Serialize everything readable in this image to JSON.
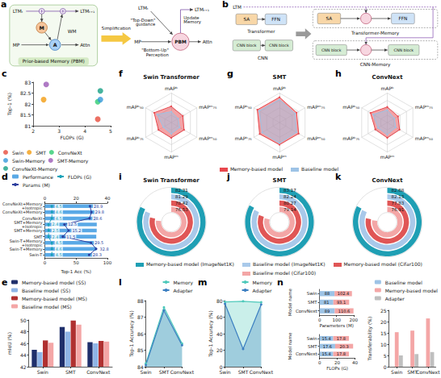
{
  "diagrams": [
    {
      "panel": "a",
      "pbm_detail": {
        "title": "Prior-based Memory (PBM)",
        "ltm_in": "LTMₜ",
        "ltm_out": "LTMₜ₊₁",
        "input": "MP",
        "output": "Attn",
        "memory_node": "M",
        "attention_node": "A",
        "working_memory": "WM"
      },
      "transition": "Simplification",
      "pbm_simple": {
        "block": "PBM",
        "ltm_in": "LTMₜ",
        "ltm_out": "LTMₜ₊₁",
        "input": "MP",
        "output": "Attn",
        "top_down": "\"Top-Down\" guidance",
        "bottom_up": "\"Bottom-Up\" Perception",
        "update": "Update Memory"
      }
    },
    {
      "panel": "b",
      "memory_line": "LTM",
      "baselines": [
        {
          "name": "Transformer",
          "blocks": [
            "SA",
            "FFN"
          ]
        },
        {
          "name": "CNN",
          "blocks": [
            "CNN block",
            "CNN block"
          ]
        }
      ],
      "memory_models": [
        {
          "name": "Transformer-Memory",
          "blocks": [
            "SA",
            "FFN"
          ]
        },
        {
          "name": "CNN-Memory",
          "blocks": [
            "CNN block",
            "CNN block"
          ]
        }
      ]
    }
  ],
  "chart_data": [
    {
      "panel": "c",
      "type": "scatter",
      "xlabel": "FLOPs (G)",
      "ylabel": "Top-1 (%)",
      "xlim": [
        2,
        5
      ],
      "xticks": [
        2,
        3,
        4,
        5
      ],
      "ylim": [
        81,
        83
      ],
      "yticks": [
        81,
        81.5,
        82,
        82.5,
        83
      ],
      "legend": "bottom",
      "series": [
        {
          "name": "Swin",
          "color": "#e74c3c",
          "x": [
            4.5
          ],
          "values": [
            81.3
          ]
        },
        {
          "name": "SMT",
          "color": "#f39c12",
          "x": [
            2.4
          ],
          "values": [
            82.2
          ]
        },
        {
          "name": "ConvNeXt",
          "color": "#2ecc71",
          "x": [
            4.5
          ],
          "values": [
            82.1
          ]
        },
        {
          "name": "Swin-Memory",
          "color": "#3498db",
          "x": [
            4.6
          ],
          "values": [
            82.2
          ]
        },
        {
          "name": "SMT-Memory",
          "color": "#9b59b6",
          "x": [
            2.5
          ],
          "values": [
            82.9
          ]
        },
        {
          "name": "ConvNeXt-Memory",
          "color": "#16a085",
          "x": [
            4.6
          ],
          "values": [
            82.6
          ]
        }
      ]
    },
    {
      "panel": "f",
      "type": "radar",
      "title": "Swin Transformer",
      "tick_labels": false,
      "legend": "bottom",
      "indicators": [
        {
          "name": "mAPᵇ",
          "min": 40,
          "max": 50
        },
        {
          "name": "mAPᵇ₅₀",
          "min": 60,
          "max": 72
        },
        {
          "name": "mAPᵇ₇₅",
          "min": 44,
          "max": 56
        },
        {
          "name": "mAPᵐ",
          "min": 36,
          "max": 46
        },
        {
          "name": "mAPᵐ₅₀",
          "min": 60,
          "max": 70
        },
        {
          "name": "mAPᵐ₇₅",
          "min": 40,
          "max": 50
        }
      ],
      "series": [
        {
          "name": "Memory-based model",
          "color": "#e8474d",
          "values": [
            45.5,
            68.0,
            50.0,
            41.2,
            65.0,
            44.5
          ]
        },
        {
          "name": "Baseline model",
          "color": "#9dc3e6",
          "values": [
            43.7,
            66.6,
            47.7,
            39.8,
            63.3,
            42.7
          ]
        }
      ]
    },
    {
      "panel": "g",
      "type": "radar",
      "title": "SMT",
      "tick_labels": false,
      "indicators": [
        {
          "name": "mAPᵇ",
          "min": 40,
          "max": 50
        },
        {
          "name": "mAPᵇ₅₀",
          "min": 60,
          "max": 72
        },
        {
          "name": "mAPᵇ₇₅",
          "min": 44,
          "max": 56
        },
        {
          "name": "mAPᵐ",
          "min": 36,
          "max": 46
        },
        {
          "name": "mAPᵐ₅₀",
          "min": 60,
          "max": 70
        },
        {
          "name": "mAPᵐ₇₅",
          "min": 40,
          "max": 50
        }
      ],
      "series": [
        {
          "name": "Memory-based model",
          "color": "#e8474d",
          "values": [
            48.6,
            70.4,
            53.3,
            43.5,
            67.5,
            46.7
          ]
        },
        {
          "name": "Baseline model",
          "color": "#9dc3e6",
          "values": [
            47.8,
            69.5,
            52.1,
            43.0,
            66.6,
            46.1
          ]
        }
      ]
    },
    {
      "panel": "h",
      "type": "radar",
      "title": "ConvNext",
      "tick_labels": false,
      "indicators": [
        {
          "name": "mAPᵇ",
          "min": 40,
          "max": 50
        },
        {
          "name": "mAPᵇ₅₀",
          "min": 60,
          "max": 72
        },
        {
          "name": "mAPᵇ₇₅",
          "min": 44,
          "max": 56
        },
        {
          "name": "mAPᵐ",
          "min": 36,
          "max": 46
        },
        {
          "name": "mAPᵐ₅₀",
          "min": 60,
          "max": 70
        },
        {
          "name": "mAPᵐ₇₅",
          "min": 40,
          "max": 50
        }
      ],
      "series": [
        {
          "name": "Memory-based model",
          "color": "#e8474d",
          "values": [
            45.3,
            67.9,
            49.6,
            41.2,
            64.8,
            44.2
          ]
        },
        {
          "name": "Baseline model",
          "color": "#9dc3e6",
          "values": [
            44.2,
            66.6,
            48.3,
            40.1,
            63.3,
            42.8
          ]
        }
      ]
    },
    {
      "panel": "d",
      "type": "bar",
      "orientation": "horizontal",
      "legend": "top",
      "categories": [
        "Swin-T",
        "Swin-T+Memory",
        "Swin-T+Memory+Isotropic",
        "SMT",
        "SMT+Memory",
        "SMT+Memory+Isotropic",
        "ConvNeXt",
        "ConvNeXt+Memory",
        "ConvNeXt+Memory+Isotropic"
      ],
      "xlabel": "Top-1 Acc (%)",
      "xlim": [
        0,
        100
      ],
      "xticks": [
        0,
        50,
        100
      ],
      "x2lim": [
        0,
        40
      ],
      "x2ticks": [
        0,
        20,
        40
      ],
      "series": [
        {
          "name": "Performance",
          "type": "bar",
          "color": "#5aa9e6",
          "values": [
            81.3,
            82.2,
            82.4,
            82.2,
            82.9,
            83.0,
            82.1,
            82.6,
            82.8
          ]
        },
        {
          "name": "FLOPs (G)",
          "type": "line",
          "axis": "x2",
          "marker": "circle",
          "line_style": "dashed",
          "color": "#17a2b8",
          "data_labels": true,
          "values": [
            4.5,
            4.6,
            4.5,
            2.4,
            2.5,
            2.4,
            4.5,
            4.6,
            4.5
          ]
        },
        {
          "name": "Params (M)",
          "type": "line",
          "axis": "x2",
          "marker": "circle",
          "color": "#2c3e9e",
          "data_labels": true,
          "values": [
            28.3,
            32.8,
            29.5,
            11.5,
            15.2,
            12.5,
            28.6,
            29.8,
            28.9
          ]
        }
      ]
    },
    {
      "panel": "i",
      "type": "radial_bar",
      "title": "Swin Transformer",
      "legend": "bottom",
      "data_labels": true,
      "tick_labels": false,
      "ylim": [
        0,
        100
      ],
      "categories": [
        "Memory-based model (ImageNet1K)",
        "Baseline model (ImageNet1K)",
        "Memory-based model (Cifar100)",
        "Baseline model (Cifar100)"
      ],
      "values": [
        82.31,
        81.29,
        78.42,
        76.53
      ],
      "colors": [
        "#1f9fb4",
        "#a9c9ea",
        "#e05656",
        "#f3a6a6"
      ]
    },
    {
      "panel": "j",
      "type": "radial_bar",
      "title": "SMT",
      "data_labels": true,
      "tick_labels": false,
      "ylim": [
        0,
        100
      ],
      "categories": [
        "Memory-based model (ImageNet1K)",
        "Baseline model (ImageNet1K)",
        "Memory-based model (Cifar100)",
        "Baseline model (Cifar100)"
      ],
      "values": [
        83.17,
        82.24,
        80.27,
        79.14
      ],
      "colors": [
        "#1f9fb4",
        "#a9c9ea",
        "#e05656",
        "#f3a6a6"
      ]
    },
    {
      "panel": "k",
      "type": "radial_bar",
      "title": "ConvNext",
      "data_labels": true,
      "tick_labels": false,
      "ylim": [
        0,
        100
      ],
      "categories": [
        "Memory-based model (ImageNet1K)",
        "Baseline model (ImageNet1K)",
        "Memory-based model (Cifar100)",
        "Baseline model (Cifar100)"
      ],
      "values": [
        82.68,
        82.13,
        77.83,
        76.91
      ],
      "colors": [
        "#1f9fb4",
        "#a9c9ea",
        "#e05656",
        "#f3a6a6"
      ]
    },
    {
      "panel": "e",
      "type": "bar",
      "legend": "top",
      "categories": [
        "Swin",
        "SMT",
        "ConvNext"
      ],
      "ylabel": "mIoU (%)",
      "ylim": [
        42,
        50
      ],
      "yticks": [
        42,
        44,
        46,
        48,
        50
      ],
      "series": [
        {
          "name": "Memory-based model (SS)",
          "color": "#1f2f6b",
          "values": [
            44.9,
            48.8,
            46.2
          ]
        },
        {
          "name": "Baseline model (SS)",
          "color": "#8fb4e6",
          "values": [
            44.5,
            48.0,
            46.0
          ]
        },
        {
          "name": "Memory-based model (MS)",
          "color": "#b03030",
          "values": [
            46.5,
            49.9,
            46.4
          ]
        },
        {
          "name": "Baseline model (MS)",
          "color": "#f4a6a6",
          "values": [
            46.1,
            49.2,
            46.3
          ]
        }
      ]
    },
    {
      "panel": "l",
      "type": "area",
      "legend": "top-right",
      "categories": [
        "Swin",
        "SMT",
        "ConvNext"
      ],
      "ylabel": "Top-1 Accuracy (%)",
      "ylim": [
        84,
        88
      ],
      "yticks": [
        84,
        85,
        86,
        87,
        88
      ],
      "series": [
        {
          "name": "Memory",
          "color": "#4fc9bb",
          "marker": "circle",
          "values": [
            84.2,
            87.6,
            85.4
          ]
        },
        {
          "name": "Adapter",
          "color": "#3c7fc1",
          "marker": "circle",
          "values": [
            84.1,
            87.4,
            85.3
          ]
        }
      ]
    },
    {
      "panel": "m",
      "type": "area",
      "legend": "top-right",
      "categories": [
        "Swin",
        "SMT",
        "ConvNext"
      ],
      "ylabel": "Top-1 Accuracy (%)",
      "ylim": [
        0,
        80
      ],
      "yticks": [
        0,
        20,
        40,
        60,
        80
      ],
      "series": [
        {
          "name": "Memory",
          "color": "#4fc9bb",
          "marker": "circle",
          "values": [
            78.5,
            79.2,
            78.0
          ]
        },
        {
          "name": "Adapter",
          "color": "#3c7fc1",
          "marker": "circle",
          "values": [
            76.1,
            21.5,
            75.4
          ]
        }
      ]
    },
    {
      "panel": "n",
      "type": "bar",
      "orientation": "horizontal",
      "stacked": true,
      "data_labels": true,
      "categories": [
        "ConvNext",
        "SMT",
        "Swin"
      ],
      "ylabel": "Model name",
      "xlabel": "Parameters (M)",
      "xlim": [
        0,
        200
      ],
      "xticks": [
        0,
        100,
        200
      ],
      "series": [
        {
          "name": "Baseline model",
          "color": "#9dc3e6",
          "values": [
            89,
            81,
            88
          ]
        },
        {
          "name": "Memory-based model",
          "color": "#f4a6a6",
          "values": [
            110.6,
            93.1,
            102.4
          ]
        }
      ]
    },
    {
      "type": "bar",
      "orientation": "horizontal",
      "stacked": true,
      "data_labels": true,
      "categories": [
        "ConvNext",
        "SMT",
        "Swin"
      ],
      "ylabel": "Model name",
      "xlabel": "FLOPs (G)",
      "xlim": [
        0,
        40
      ],
      "xticks": [
        0,
        20,
        40
      ],
      "series": [
        {
          "name": "Baseline model",
          "color": "#9dc3e6",
          "values": [
            15.4,
            17.6,
            15.4
          ]
        },
        {
          "name": "Memory-based model",
          "color": "#f4a6a6",
          "values": [
            17.8,
            20.3,
            17.8
          ]
        }
      ]
    },
    {
      "type": "bar",
      "legend": "top-right",
      "categories": [
        "Swin",
        "SMT",
        "ConvNext"
      ],
      "ylabel": "Transferability (%)",
      "ylim": [
        0,
        25
      ],
      "yticks": [
        0,
        5,
        10,
        15,
        20,
        25
      ],
      "series": [
        {
          "name": "Baseline model",
          "color": "#9dc3e6",
          "values": [
            0,
            0,
            0
          ]
        },
        {
          "name": "Memory-based model",
          "color": "#f4a6a6",
          "values": [
            15.3,
            16.0,
            21.4
          ]
        },
        {
          "name": "Adapter",
          "color": "#bfbfbf",
          "values": [
            5.0,
            5.6,
            6.5
          ]
        }
      ]
    }
  ]
}
